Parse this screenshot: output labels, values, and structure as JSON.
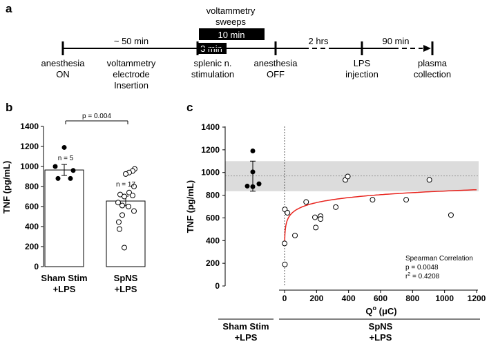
{
  "panels": {
    "a": "a",
    "b": "b",
    "c": "c"
  },
  "timeline": {
    "sweeps_title_line1": "voltammetry",
    "sweeps_title_line2": "sweeps",
    "box_10min": "10 min",
    "box_3min": "3 min",
    "duration_50": "~ 50 min",
    "duration_2hrs": "2 hrs",
    "duration_90": "90 min",
    "events": [
      {
        "line1": "anesthesia",
        "line2": "ON",
        "line3": ""
      },
      {
        "line1": "voltammetry",
        "line2": "electrode",
        "line3": "Insertion"
      },
      {
        "line1": "splenic n.",
        "line2": "stimulation",
        "line3": ""
      },
      {
        "line1": "anesthesia",
        "line2": "OFF",
        "line3": ""
      },
      {
        "line1": "LPS",
        "line2": "injection",
        "line3": ""
      },
      {
        "line1": "plasma",
        "line2": "collection",
        "line3": ""
      }
    ]
  },
  "chart_data": [
    {
      "id": "b",
      "type": "bar",
      "title": "",
      "ylabel": "TNF (pg/mL)",
      "ylim": [
        0,
        1400
      ],
      "yticks": [
        0,
        200,
        400,
        600,
        800,
        1000,
        1200,
        1400
      ],
      "categories": [
        {
          "line1": "Sham Stim",
          "line2": "+LPS"
        },
        {
          "line1": "SpNS",
          "line2": "+LPS"
        }
      ],
      "means": [
        965,
        655
      ],
      "sem": [
        55,
        48
      ],
      "n_labels": [
        "n = 5",
        "n = 17"
      ],
      "pvalue_label": "p = 0.004",
      "points": [
        [
          1190,
          1000,
          960,
          880,
          880
        ],
        [
          975,
          955,
          940,
          925,
          800,
          740,
          720,
          710,
          700,
          640,
          610,
          600,
          555,
          515,
          445,
          375,
          190
        ]
      ]
    },
    {
      "id": "c",
      "type": "scatter",
      "ylabel": "TNF (pg/mL)",
      "xlabel_main": "Q",
      "xlabel_sup": "o",
      "xlabel_unit": " (μC)",
      "ylim": [
        0,
        1400
      ],
      "xlim": [
        0,
        1200
      ],
      "yticks": [
        0,
        200,
        400,
        600,
        800,
        1000,
        1200,
        1400
      ],
      "xticks": [
        0,
        200,
        400,
        600,
        800,
        1000,
        1200
      ],
      "sham_points": [
        1190,
        1005,
        900,
        880,
        875
      ],
      "sham_mean": 965,
      "sham_ci": [
        835,
        1100
      ],
      "shaded_band": [
        835,
        1100
      ],
      "reference_line": 970,
      "spns_points": [
        {
          "x": 2,
          "y": 675
        },
        {
          "x": 18,
          "y": 645
        },
        {
          "x": 0,
          "y": 375
        },
        {
          "x": 2,
          "y": 190
        },
        {
          "x": 65,
          "y": 445
        },
        {
          "x": 135,
          "y": 740
        },
        {
          "x": 190,
          "y": 605
        },
        {
          "x": 195,
          "y": 515
        },
        {
          "x": 225,
          "y": 615
        },
        {
          "x": 225,
          "y": 590
        },
        {
          "x": 320,
          "y": 695
        },
        {
          "x": 380,
          "y": 935
        },
        {
          "x": 395,
          "y": 965
        },
        {
          "x": 550,
          "y": 760
        },
        {
          "x": 760,
          "y": 760
        },
        {
          "x": 905,
          "y": 935
        },
        {
          "x": 1040,
          "y": 625
        }
      ],
      "fit": {
        "color": "#e8231d",
        "a": 400,
        "b": 63.2
      },
      "stats": {
        "title": "Spearman Correlation",
        "p": "p = 0.0048",
        "r_prefix": "r",
        "r_sup": "2",
        "r_value": " = 0.4208"
      },
      "groups": [
        {
          "line1": "Sham Stim",
          "line2": "+LPS"
        },
        {
          "line1": "SpNS",
          "line2": "+LPS"
        }
      ]
    }
  ]
}
